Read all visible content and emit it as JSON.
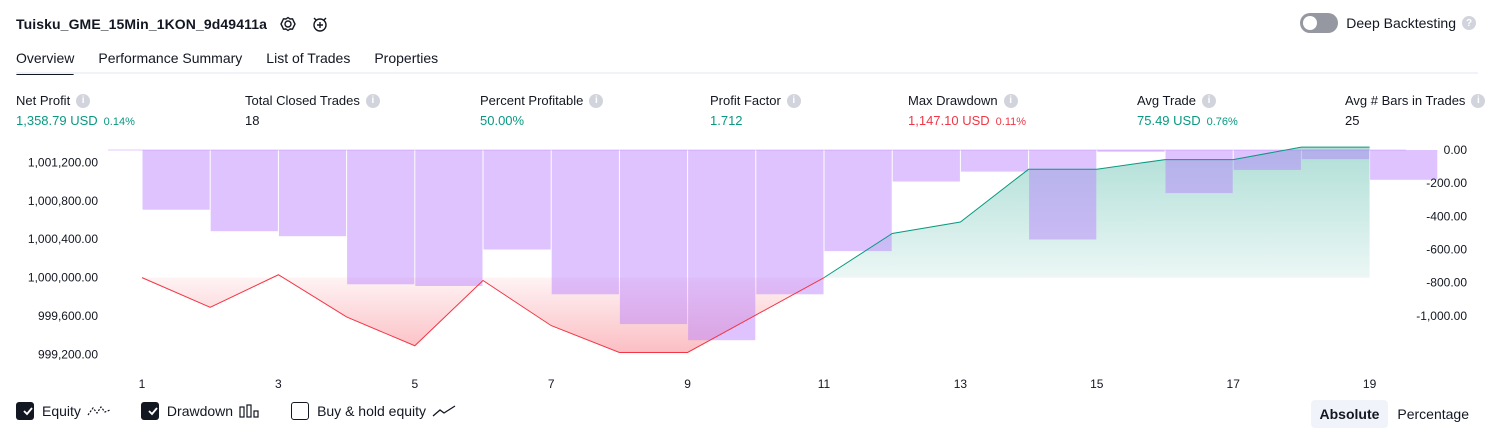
{
  "header": {
    "strategy_title": "Tuisku_GME_15Min_1KON_9d49411a",
    "settings_icon": "gear-icon",
    "add_alert_icon": "alarm-plus-icon",
    "deep_backtesting_label": "Deep Backtesting",
    "deep_backtesting_enabled": false
  },
  "tabs": [
    "Overview",
    "Performance Summary",
    "List of Trades",
    "Properties"
  ],
  "active_tab": "Overview",
  "metrics": [
    {
      "label": "Net Profit",
      "value": "1,358.79 USD",
      "pct": "0.14%",
      "tone": "pos"
    },
    {
      "label": "Total Closed Trades",
      "value": "18",
      "pct": "",
      "tone": "plain"
    },
    {
      "label": "Percent Profitable",
      "value": "50.00%",
      "pct": "",
      "tone": "pos"
    },
    {
      "label": "Profit Factor",
      "value": "1.712",
      "pct": "",
      "tone": "pos"
    },
    {
      "label": "Max Drawdown",
      "value": "1,147.10 USD",
      "pct": "0.11%",
      "tone": "neg"
    },
    {
      "label": "Avg Trade",
      "value": "75.49 USD",
      "pct": "0.76%",
      "tone": "pos"
    },
    {
      "label": "Avg # Bars in Trades",
      "value": "25",
      "pct": "",
      "tone": "plain"
    }
  ],
  "chart_data": {
    "type": "line",
    "x": [
      1,
      2,
      3,
      4,
      5,
      6,
      7,
      8,
      9,
      10,
      11,
      12,
      13,
      14,
      15,
      16,
      17,
      18,
      19
    ],
    "x_tick_labels": [
      "1",
      "3",
      "5",
      "7",
      "9",
      "11",
      "13",
      "15",
      "17",
      "19"
    ],
    "series": [
      {
        "name": "Equity",
        "axis": "left",
        "values": [
          1000000.0,
          999690.0,
          1000030.0,
          999590.0,
          999290.0,
          999970.0,
          999500.0,
          999220.0,
          999220.0,
          999610.0,
          1000000.0,
          1000460.0,
          1000580.0,
          1001130.0,
          1001130.0,
          1001230.0,
          1001230.0,
          1001360.0,
          1001360.0
        ]
      },
      {
        "name": "Drawdown",
        "type": "bar",
        "axis": "right",
        "values": [
          -360,
          -490,
          -520,
          -810,
          -820,
          -600,
          -870,
          -1050,
          -1147,
          -870,
          -610,
          -190,
          -130,
          -540,
          -10,
          -260,
          -120,
          -55,
          -180
        ]
      }
    ],
    "left_axis_ticks": [
      "1,001,200.00",
      "1,000,800.00",
      "1,000,400.00",
      "1,000,000.00",
      "999,600.00",
      "999,200.00"
    ],
    "right_axis_ticks": [
      "0.00",
      "-200.00",
      "-400.00",
      "-600.00",
      "-800.00",
      "-1,000.00"
    ],
    "left_ylim": [
      999100,
      1001330
    ],
    "right_ylim": [
      -1170,
      0
    ],
    "colors": {
      "equity_up": "#089981",
      "equity_down": "#f23645",
      "drawdown": "#b57bff"
    }
  },
  "legend": [
    {
      "label": "Equity",
      "checked": true,
      "icon": "equity-line-icon"
    },
    {
      "label": "Drawdown",
      "checked": true,
      "icon": "drawdown-bars-icon"
    },
    {
      "label": "Buy & hold equity",
      "checked": false,
      "icon": "buy-hold-line-icon"
    }
  ],
  "modes": [
    "Absolute",
    "Percentage"
  ],
  "active_mode": "Absolute"
}
